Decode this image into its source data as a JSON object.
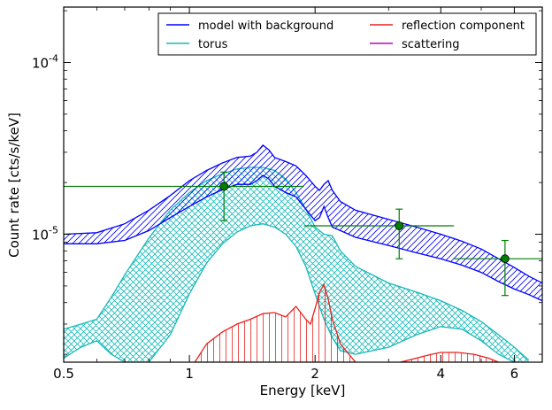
{
  "chart_data": {
    "type": "line",
    "xlabel": "Energy [keV]",
    "ylabel": "Count rate [cts/s/keV]",
    "xscale": "log",
    "yscale": "log",
    "xlim": [
      0.5,
      7.0
    ],
    "ylim": [
      1.8e-06,
      0.00021
    ],
    "grid": false,
    "legend_position": "top-right",
    "x_ticks": [
      {
        "value": 0.5,
        "label": "0.5"
      },
      {
        "value": 1,
        "label": "1"
      },
      {
        "value": 2,
        "label": "2"
      },
      {
        "value": 4,
        "label": "4"
      },
      {
        "value": 6,
        "label": "6"
      }
    ],
    "y_ticks": [
      {
        "value": 1e-05,
        "base": "10",
        "exp": "-5"
      },
      {
        "value": 0.0001,
        "base": "10",
        "exp": "-4"
      }
    ],
    "colors": {
      "model": "#0000ff",
      "torus": "#1ab9b9",
      "reflection": "#e8221d",
      "scattering": "#bf00bf",
      "data": "#007f00"
    },
    "series": [
      {
        "name": "model with background",
        "key": "model",
        "kind": "band",
        "x": [
          0.5,
          0.6,
          0.7,
          0.8,
          0.9,
          1.0,
          1.1,
          1.2,
          1.3,
          1.4,
          1.45,
          1.5,
          1.55,
          1.6,
          1.7,
          1.8,
          1.9,
          2.0,
          2.05,
          2.1,
          2.15,
          2.2,
          2.3,
          2.5,
          3.0,
          3.5,
          4.0,
          4.5,
          5.0,
          5.5,
          6.0,
          6.5,
          7.0
        ],
        "upper": [
          1e-05,
          1.02e-05,
          1.15e-05,
          1.38e-05,
          1.68e-05,
          2.05e-05,
          2.35e-05,
          2.6e-05,
          2.8e-05,
          2.85e-05,
          3e-05,
          3.3e-05,
          3.1e-05,
          2.8e-05,
          2.65e-05,
          2.5e-05,
          2.2e-05,
          1.9e-05,
          1.8e-05,
          1.95e-05,
          2.05e-05,
          1.8e-05,
          1.55e-05,
          1.38e-05,
          1.22e-05,
          1.1e-05,
          1e-05,
          9.1e-06,
          8.2e-06,
          7.2e-06,
          6.4e-06,
          5.7e-06,
          5.2e-06
        ],
        "lower": [
          8.8e-06,
          8.8e-06,
          9.2e-06,
          1.05e-05,
          1.25e-05,
          1.45e-05,
          1.65e-05,
          1.82e-05,
          1.95e-05,
          1.95e-05,
          2.05e-05,
          2.2e-05,
          2.1e-05,
          1.9e-05,
          1.75e-05,
          1.65e-05,
          1.4e-05,
          1.2e-05,
          1.25e-05,
          1.45e-05,
          1.25e-05,
          1.1e-05,
          1.05e-05,
          9.6e-06,
          8.6e-06,
          7.8e-06,
          7.2e-06,
          6.6e-06,
          6e-06,
          5.3e-06,
          4.8e-06,
          4.45e-06,
          4.1e-06
        ]
      },
      {
        "name": "torus",
        "key": "torus",
        "kind": "band",
        "x": [
          0.5,
          0.55,
          0.6,
          0.65,
          0.7,
          0.8,
          0.9,
          1.0,
          1.1,
          1.2,
          1.3,
          1.4,
          1.5,
          1.6,
          1.7,
          1.8,
          1.9,
          2.0,
          2.1,
          2.2,
          2.3,
          2.5,
          3.0,
          3.5,
          4.0,
          4.5,
          5.0,
          5.5,
          6.0,
          6.5
        ],
        "upper": [
          2.8e-06,
          3e-06,
          3.2e-06,
          4.3e-06,
          5.8e-06,
          9.5e-06,
          1.38e-05,
          1.75e-05,
          2.05e-05,
          2.25e-05,
          2.4e-05,
          2.45e-05,
          2.45e-05,
          2.35e-05,
          2.1e-05,
          1.75e-05,
          1.4e-05,
          1.1e-05,
          1e-05,
          9.8e-06,
          8e-06,
          6.5e-06,
          5.2e-06,
          4.6e-06,
          4.1e-06,
          3.6e-06,
          3.1e-06,
          2.6e-06,
          2.2e-06,
          1.85e-06
        ],
        "lower": [
          1.9e-06,
          2.2e-06,
          2.4e-06,
          2e-06,
          1.8e-06,
          1.8e-06,
          2.6e-06,
          4.5e-06,
          6.8e-06,
          8.8e-06,
          1.03e-05,
          1.12e-05,
          1.15e-05,
          1.1e-05,
          1e-05,
          8.5e-06,
          6.5e-06,
          4.5e-06,
          3.2e-06,
          2.5e-06,
          2.1e-06,
          2e-06,
          2.2e-06,
          2.6e-06,
          2.9e-06,
          2.8e-06,
          2.4e-06,
          2e-06,
          1.8e-06,
          1.8e-06
        ]
      },
      {
        "name": "reflection component",
        "key": "reflection",
        "kind": "band",
        "x": [
          1.03,
          1.1,
          1.2,
          1.3,
          1.4,
          1.5,
          1.6,
          1.7,
          1.8,
          1.9,
          1.95,
          2.0,
          2.05,
          2.1,
          2.15,
          2.2,
          2.3,
          2.5
        ],
        "upper": [
          1.8e-06,
          2.3e-06,
          2.7e-06,
          3e-06,
          3.2e-06,
          3.45e-06,
          3.5e-06,
          3.3e-06,
          3.8e-06,
          3.2e-06,
          3e-06,
          3.7e-06,
          4.6e-06,
          5.1e-06,
          4.2e-06,
          3.2e-06,
          2.3e-06,
          1.8e-06
        ],
        "lower": [
          1.8e-06,
          1.8e-06,
          1.8e-06,
          1.8e-06,
          1.8e-06,
          1.8e-06,
          1.8e-06,
          1.8e-06,
          1.8e-06,
          1.8e-06,
          1.8e-06,
          1.8e-06,
          1.8e-06,
          1.8e-06,
          1.8e-06,
          1.8e-06,
          1.8e-06,
          1.8e-06
        ]
      },
      {
        "name": "",
        "key": "reflection",
        "kind": "band",
        "x": [
          3.2,
          3.5,
          3.8,
          4.0,
          4.4,
          4.8,
          5.2,
          5.5
        ],
        "upper": [
          1.8e-06,
          1.9e-06,
          2e-06,
          2.05e-06,
          2.05e-06,
          2e-06,
          1.9e-06,
          1.8e-06
        ],
        "lower": [
          1.8e-06,
          1.8e-06,
          1.8e-06,
          1.8e-06,
          1.8e-06,
          1.8e-06,
          1.8e-06,
          1.8e-06
        ]
      },
      {
        "name": "scattering",
        "key": "scattering",
        "kind": "line",
        "x": [],
        "y": []
      }
    ],
    "data_points": [
      {
        "x": 1.21,
        "y": 1.9e-05,
        "xerr": [
          0.5,
          1.88
        ],
        "yerr": [
          1.2e-05,
          2.3e-05
        ]
      },
      {
        "x": 3.18,
        "y": 1.12e-05,
        "xerr": [
          1.88,
          4.3
        ],
        "yerr": [
          7.2e-06,
          1.4e-05
        ]
      },
      {
        "x": 5.7,
        "y": 7.2e-06,
        "xerr": [
          4.3,
          7.0
        ],
        "yerr": [
          4.4e-06,
          9.2e-06
        ]
      }
    ]
  }
}
